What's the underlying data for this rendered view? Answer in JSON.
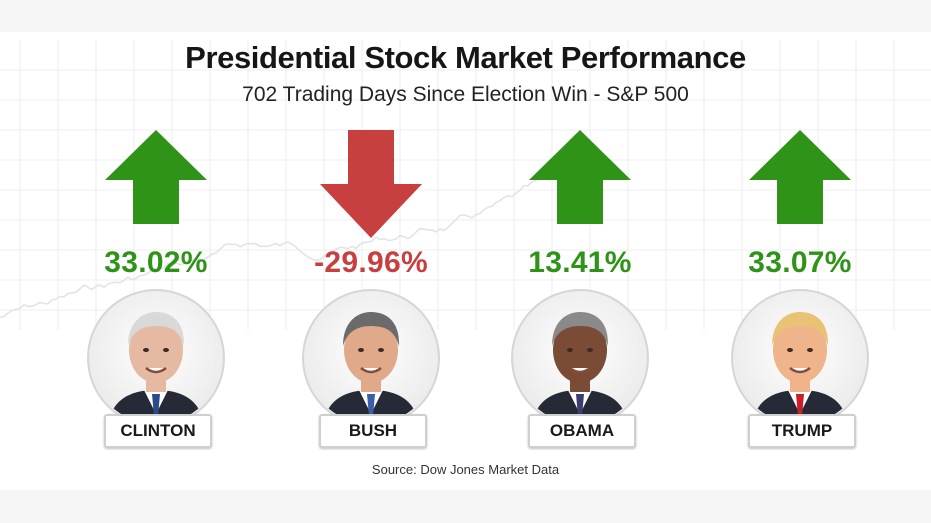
{
  "title": "Presidential Stock Market Performance",
  "subtitle": "702 Trading Days Since Election Win - S&P 500",
  "source": "Source: Dow Jones Market Data",
  "colors": {
    "up": "#2e9317",
    "down": "#c7403f",
    "text": "#161616"
  },
  "chart_data": {
    "type": "bar",
    "title": "Presidential Stock Market Performance",
    "subtitle": "702 Trading Days Since Election Win - S&P 500",
    "categories": [
      "CLINTON",
      "BUSH",
      "OBAMA",
      "TRUMP"
    ],
    "values": [
      33.02,
      -29.96,
      13.41,
      33.07
    ],
    "labels": [
      "33.02%",
      "-29.96%",
      "13.41%",
      "33.07%"
    ],
    "direction": [
      "up",
      "down",
      "up",
      "up"
    ],
    "icons": [
      "arrow-up-icon",
      "arrow-down-icon",
      "arrow-up-icon",
      "arrow-up-icon"
    ]
  }
}
